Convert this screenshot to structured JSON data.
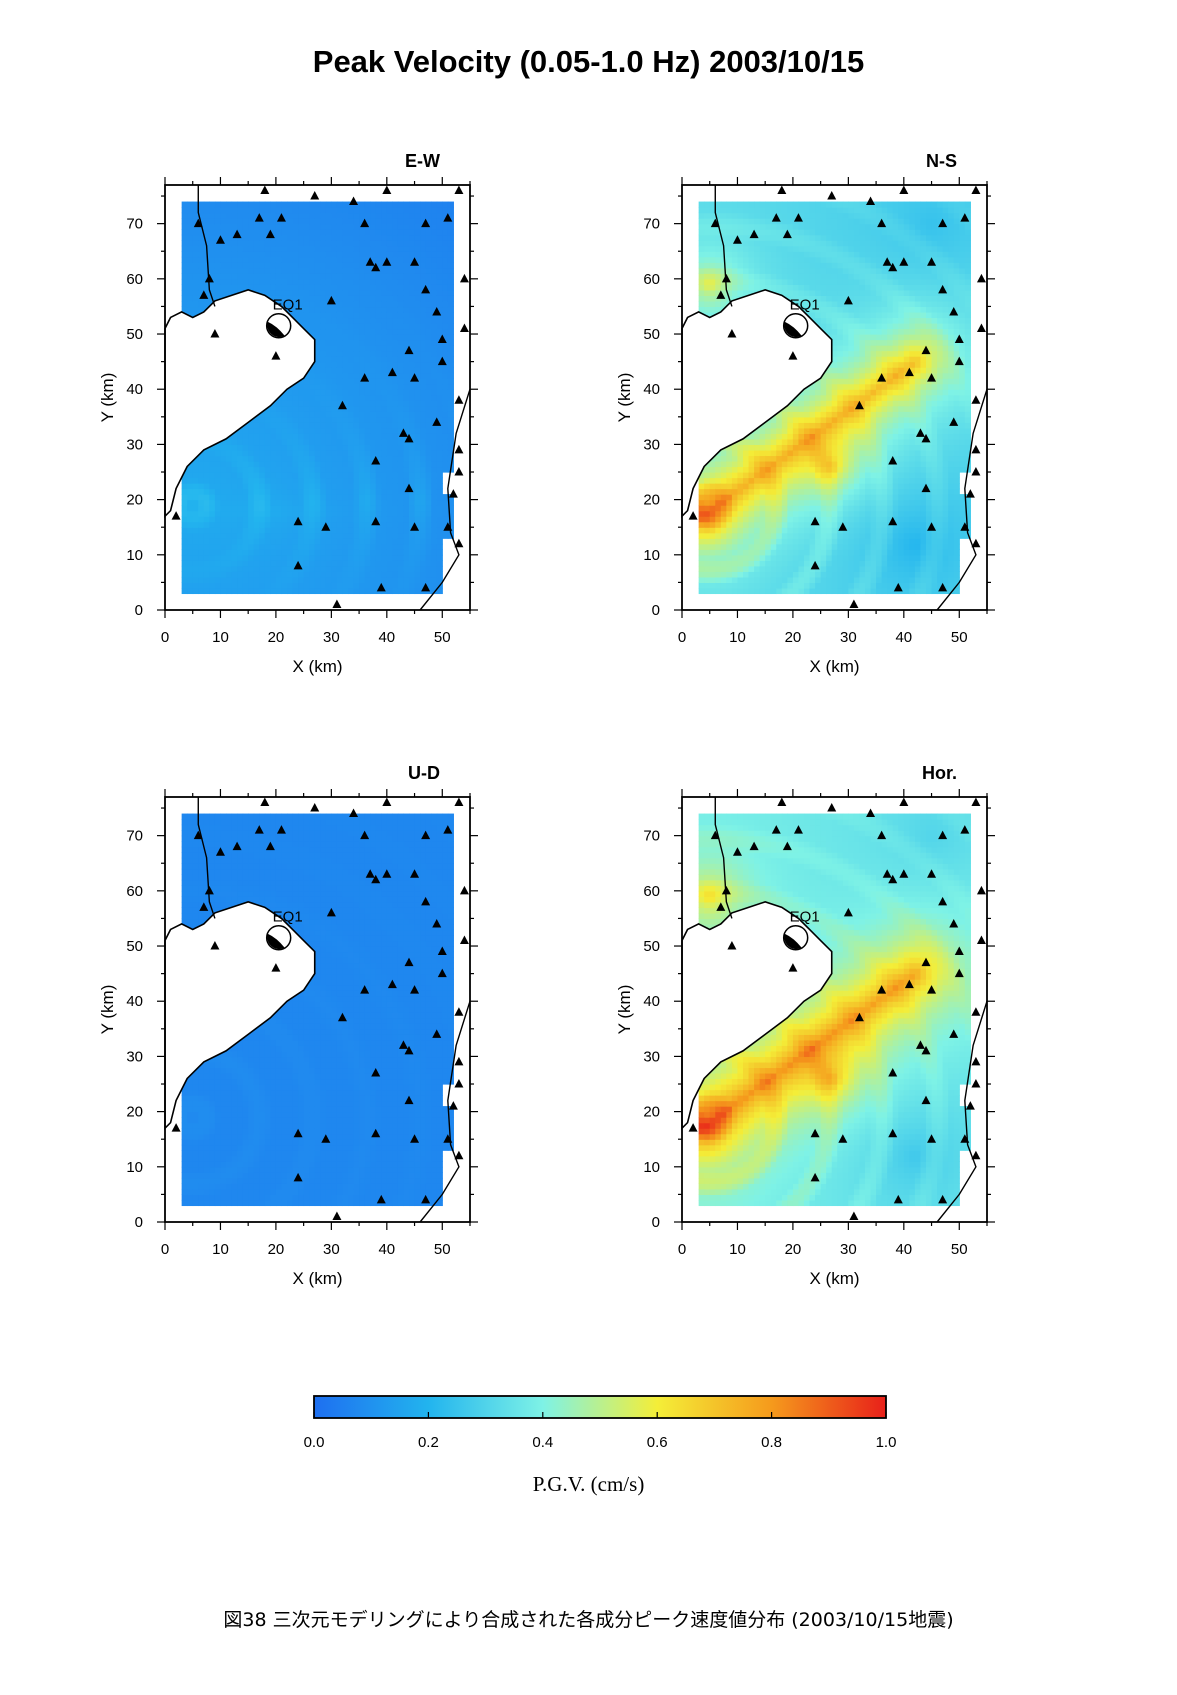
{
  "title": "Peak Velocity (0.05-1.0 Hz) 2003/10/15",
  "caption": "図38 三次元モデリングにより合成された各成分ピーク速度値分布 (2003/10/15地震)",
  "colorbar": {
    "label": "P.G.V. (cm/s)",
    "ticks": [
      "0.0",
      "0.2",
      "0.4",
      "0.6",
      "0.8",
      "1.0"
    ],
    "min": 0.0,
    "max": 1.0,
    "colors": [
      "#1e6ff0",
      "#22b4ee",
      "#7ef2e6",
      "#f4ee38",
      "#f59a1c",
      "#e8201a"
    ]
  },
  "chart_data": [
    {
      "type": "heatmap",
      "title": "E-W",
      "xlabel": "X (km)",
      "ylabel": "Y (km)",
      "xlim": [
        0,
        55
      ],
      "ylim": [
        0,
        77
      ],
      "xticks": [
        "0",
        "10",
        "20",
        "30",
        "40",
        "50"
      ],
      "yticks": [
        "0",
        "10",
        "20",
        "30",
        "40",
        "50",
        "60",
        "70"
      ],
      "epicenter_label": "EQ1",
      "value_range": [
        0.05,
        0.3
      ]
    },
    {
      "type": "heatmap",
      "title": "N-S",
      "xlabel": "X (km)",
      "ylabel": "Y (km)",
      "xlim": [
        0,
        55
      ],
      "ylim": [
        0,
        77
      ],
      "xticks": [
        "0",
        "10",
        "20",
        "30",
        "40",
        "50"
      ],
      "yticks": [
        "0",
        "10",
        "20",
        "30",
        "40",
        "50",
        "60",
        "70"
      ],
      "epicenter_label": "EQ1",
      "value_range": [
        0.15,
        0.95
      ]
    },
    {
      "type": "heatmap",
      "title": "U-D",
      "xlabel": "X (km)",
      "ylabel": "Y (km)",
      "xlim": [
        0,
        55
      ],
      "ylim": [
        0,
        77
      ],
      "xticks": [
        "0",
        "10",
        "20",
        "30",
        "40",
        "50"
      ],
      "yticks": [
        "0",
        "10",
        "20",
        "30",
        "40",
        "50",
        "60",
        "70"
      ],
      "epicenter_label": "EQ1",
      "value_range": [
        0.0,
        0.12
      ]
    },
    {
      "type": "heatmap",
      "title": "Hor.",
      "xlabel": "X (km)",
      "ylabel": "Y (km)",
      "xlim": [
        0,
        55
      ],
      "ylim": [
        0,
        77
      ],
      "xticks": [
        "0",
        "10",
        "20",
        "30",
        "40",
        "50"
      ],
      "yticks": [
        "0",
        "10",
        "20",
        "30",
        "40",
        "50",
        "60",
        "70"
      ],
      "epicenter_label": "EQ1",
      "value_range": [
        0.2,
        1.0
      ]
    }
  ],
  "stations": [
    [
      2,
      17
    ],
    [
      6,
      70
    ],
    [
      7,
      57
    ],
    [
      8,
      60
    ],
    [
      9,
      50
    ],
    [
      10,
      67
    ],
    [
      13,
      68
    ],
    [
      17,
      71
    ],
    [
      19,
      68
    ],
    [
      21,
      71
    ],
    [
      24,
      16
    ],
    [
      24,
      8
    ],
    [
      29,
      15
    ],
    [
      30,
      56
    ],
    [
      36,
      70
    ],
    [
      37,
      63
    ],
    [
      38,
      62
    ],
    [
      38,
      27
    ],
    [
      38,
      16
    ],
    [
      40,
      63
    ],
    [
      41,
      43
    ],
    [
      43,
      32
    ],
    [
      44,
      31
    ],
    [
      45,
      42
    ],
    [
      45,
      15
    ],
    [
      45,
      63
    ],
    [
      47,
      58
    ],
    [
      47,
      70
    ],
    [
      49,
      54
    ],
    [
      49,
      34
    ],
    [
      50,
      45
    ],
    [
      50,
      49
    ],
    [
      51,
      71
    ],
    [
      52,
      21
    ],
    [
      51,
      15
    ],
    [
      47,
      4
    ],
    [
      39,
      4
    ],
    [
      31,
      1
    ],
    [
      44,
      22
    ],
    [
      18,
      76
    ],
    [
      27,
      75
    ],
    [
      40,
      76
    ],
    [
      34,
      74
    ],
    [
      53,
      76
    ],
    [
      54,
      60
    ],
    [
      54,
      51
    ],
    [
      53,
      38
    ],
    [
      53,
      29
    ],
    [
      53,
      25
    ],
    [
      53,
      12
    ],
    [
      32,
      37
    ],
    [
      36,
      42
    ],
    [
      44,
      47
    ],
    [
      20,
      46
    ]
  ]
}
